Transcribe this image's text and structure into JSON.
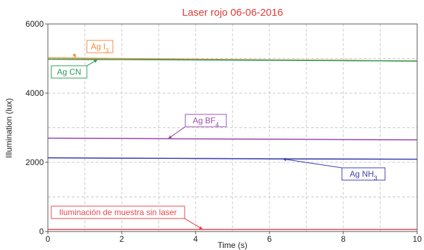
{
  "chart_data": {
    "type": "line",
    "title": "Laser rojo 06-06-2016",
    "xlabel": "Time (s)",
    "ylabel": "Illumination (lux)",
    "xlim": [
      0,
      10
    ],
    "ylim": [
      0,
      6000
    ],
    "xticks": [
      0,
      2,
      4,
      6,
      8,
      10
    ],
    "yticks": [
      0,
      2000,
      4000,
      6000
    ],
    "grid": true,
    "series": [
      {
        "name": "Ag I3",
        "color": "#f08a3c",
        "x": [
          0,
          2,
          4,
          6,
          8,
          10
        ],
        "y": [
          5020,
          5000,
          4980,
          4960,
          4950,
          4920
        ]
      },
      {
        "name": "Ag CN",
        "color": "#2e9e58",
        "x": [
          0,
          2,
          4,
          6,
          8,
          10
        ],
        "y": [
          4980,
          4970,
          4960,
          4950,
          4940,
          4930
        ]
      },
      {
        "name": "Ag BF4",
        "color": "#9b4fb0",
        "x": [
          0,
          2,
          4,
          6,
          8,
          10
        ],
        "y": [
          2700,
          2690,
          2680,
          2670,
          2660,
          2650
        ]
      },
      {
        "name": "Ag NH3",
        "color": "#3a3eb0",
        "x": [
          0,
          2,
          4,
          6,
          8,
          10
        ],
        "y": [
          2130,
          2120,
          2110,
          2100,
          2095,
          2090
        ]
      },
      {
        "name": "Iluminación de muestra sin laser",
        "color": "#e8474f",
        "x": [
          0,
          2,
          4,
          6,
          8,
          10
        ],
        "y": [
          60,
          60,
          60,
          60,
          60,
          60
        ]
      }
    ],
    "annotations": [
      {
        "text": "Ag I",
        "sub": "3",
        "series": 0,
        "color": "#f08a3c"
      },
      {
        "text": "Ag CN",
        "sub": "",
        "series": 1,
        "color": "#2e9e58"
      },
      {
        "text": "Ag BF",
        "sub": "4",
        "series": 2,
        "color": "#9b4fb0"
      },
      {
        "text": "Ag NH",
        "sub": "3",
        "series": 3,
        "color": "#3a3eb0"
      },
      {
        "text": "Iluminación de muestra sin laser",
        "sub": "",
        "series": 4,
        "color": "#e8474f"
      }
    ]
  }
}
